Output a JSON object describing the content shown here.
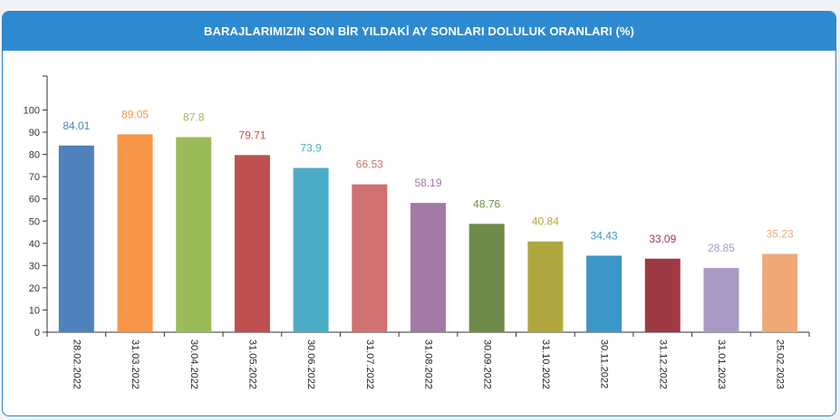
{
  "title": "BARAJLARIMIZIN SON BİR YILDAKİ AY SONLARI DOLULUK ORANLARI (%)",
  "chart_data": {
    "type": "bar",
    "title": "BARAJLARIMIZIN SON BİR YILDAKİ AY SONLARI DOLULUK ORANLARI (%)",
    "xlabel": "",
    "ylabel": "",
    "ylim": [
      0,
      110
    ],
    "yticks": [
      0,
      10,
      20,
      30,
      40,
      50,
      60,
      70,
      80,
      90,
      100
    ],
    "grid": false,
    "legend": "none",
    "categories": [
      "28.02.2022",
      "31.03.2022",
      "30.04.2022",
      "31.05.2022",
      "30.06.2022",
      "31.07.2022",
      "31.08.2022",
      "30.09.2022",
      "31.10.2022",
      "30.11.2022",
      "31.12.2022",
      "31.01.2023",
      "25.02.2023"
    ],
    "values": [
      84.01,
      89.05,
      87.8,
      79.71,
      73.9,
      66.53,
      58.19,
      48.76,
      40.84,
      34.43,
      33.09,
      28.85,
      35.23
    ],
    "value_labels": [
      "84.01",
      "89.05",
      "87.8",
      "79.71",
      "73.9",
      "66.53",
      "58.19",
      "48.76",
      "40.84",
      "34.43",
      "33.09",
      "28.85",
      "35.23"
    ],
    "colors": [
      "#4f81bd",
      "#f79646",
      "#9bbb59",
      "#c0504d",
      "#4bacc6",
      "#d07070",
      "#a379a6",
      "#6e8b4a",
      "#b0a83e",
      "#3d96c8",
      "#9e3a44",
      "#a999c4",
      "#f0a878"
    ]
  }
}
